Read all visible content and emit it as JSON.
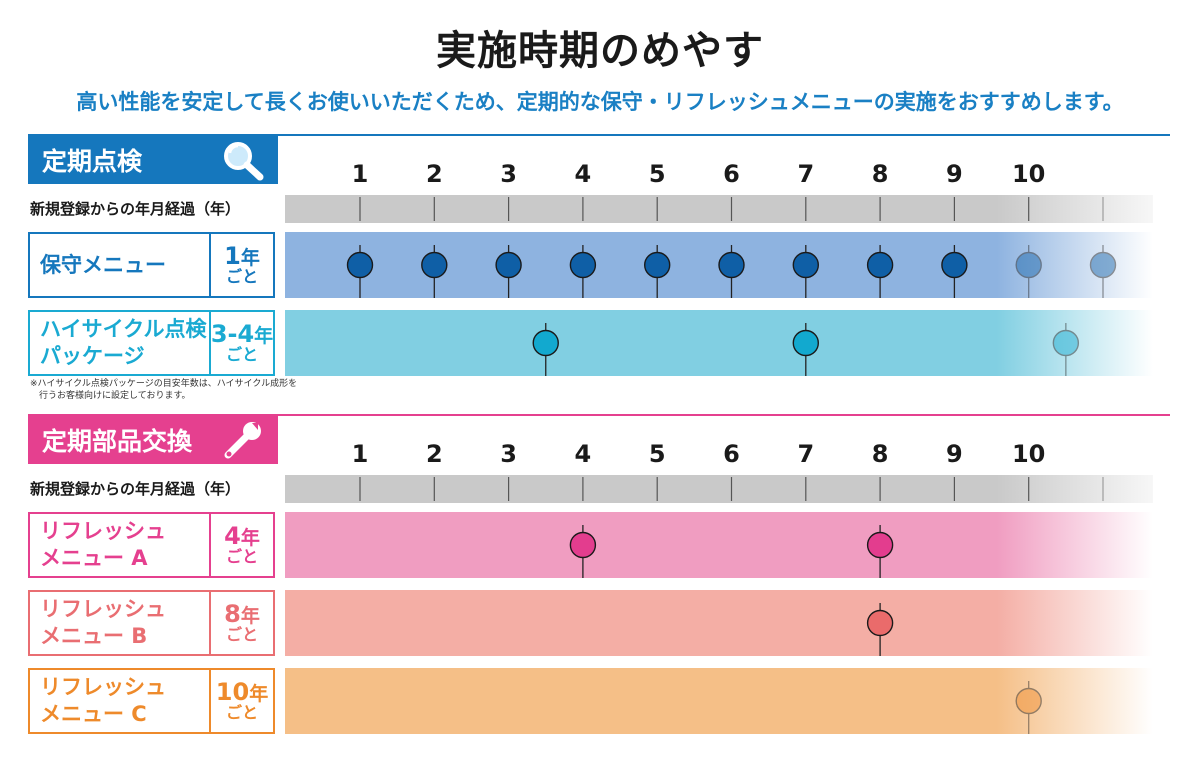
{
  "title": "実施時期のめやす",
  "subtitle": "高い性能を安定して長くお使いいただくため、定期的な保守・リフレッシュメニューの実施をおすすめします。",
  "sections": [
    {
      "label": "定期点検",
      "icon": "magnifier-icon",
      "color": "#1577bd",
      "axis_label": "新規登録からの年月経過（年）",
      "ticks": [
        "1",
        "2",
        "3",
        "4",
        "5",
        "6",
        "7",
        "8",
        "9",
        "10"
      ],
      "rows": [
        {
          "name": "保守メニュー",
          "freq_num": "1",
          "freq_unit": "年",
          "freq_sub": "ごと",
          "color": "#1577bd",
          "bar_color": "#8eb3e0",
          "marker_color": "#0f5fa6",
          "points": [
            1,
            2,
            3,
            4,
            5,
            6,
            7,
            8,
            9,
            10,
            11
          ]
        },
        {
          "name": "ハイサイクル点検\nパッケージ",
          "freq_num": "3-4",
          "freq_unit": "年",
          "freq_sub": "ごと",
          "color": "#1aaad2",
          "bar_color": "#81cfe2",
          "marker_color": "#12a9cf",
          "points": [
            3.5,
            7,
            10.5
          ]
        }
      ],
      "note": "※ハイサイクル点検パッケージの目安年数は、ハイサイクル成形を\n　行うお客様向けに設定しております。"
    },
    {
      "label": "定期部品交換",
      "icon": "wrench-icon",
      "color": "#e5408f",
      "axis_label": "新規登録からの年月経過（年）",
      "ticks": [
        "1",
        "2",
        "3",
        "4",
        "5",
        "6",
        "7",
        "8",
        "9",
        "10"
      ],
      "rows": [
        {
          "name": "リフレッシュ\nメニュー A",
          "freq_num": "4",
          "freq_unit": "年",
          "freq_sub": "ごと",
          "color": "#e5408f",
          "bar_color": "#f09dc1",
          "marker_color": "#e33d8e",
          "points": [
            4,
            8
          ]
        },
        {
          "name": "リフレッシュ\nメニュー B",
          "freq_num": "8",
          "freq_unit": "年",
          "freq_sub": "ごと",
          "color": "#e96e72",
          "bar_color": "#f4aea5",
          "marker_color": "#ea6b6b",
          "points": [
            8
          ]
        },
        {
          "name": "リフレッシュ\nメニュー C",
          "freq_num": "10",
          "freq_unit": "年",
          "freq_sub": "ごと",
          "color": "#ee8a2b",
          "bar_color": "#f5bf87",
          "marker_color": "#f08a2a",
          "points": [
            10
          ]
        }
      ]
    }
  ]
}
